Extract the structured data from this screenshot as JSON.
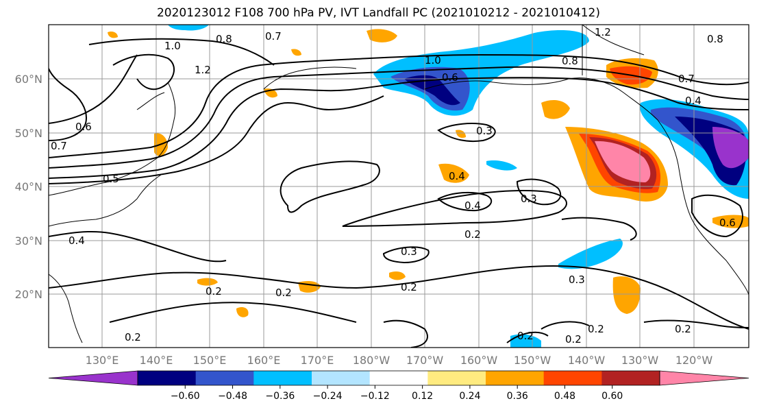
{
  "title": "2020123012 F108 700 hPa PV, IVT Landfall PC (2021010212 - 2021010412)",
  "lat_labels": [
    "60°N",
    "50°N",
    "40°N",
    "30°N",
    "20°N"
  ],
  "lon_labels": [
    "130°E",
    "140°E",
    "150°E",
    "160°E",
    "170°E",
    "180°W",
    "170°W",
    "160°W",
    "150°W",
    "140°W",
    "130°W",
    "120°W"
  ],
  "colorbar": {
    "colors": [
      "#9933cc",
      "#000080",
      "#3355cc",
      "#00bfff",
      "#b3e5ff",
      "#ffffff",
      "#ffeb80",
      "#ffa500",
      "#ff4500",
      "#b22222",
      "#ff85a8"
    ],
    "ticks": [
      "−0.60",
      "−0.48",
      "−0.36",
      "−0.24",
      "−0.12",
      "0.12",
      "0.24",
      "0.36",
      "0.48",
      "0.60"
    ]
  },
  "contour_labels": [
    "0.8",
    "0.7",
    "1.0",
    "1.2",
    "1.0",
    "0.8",
    "0.6",
    "1.2",
    "0.8",
    "0.7",
    "0.4",
    "0.6",
    "0.7",
    "0.5",
    "0.3",
    "0.4",
    "0.3",
    "0.4",
    "0.2",
    "0.3",
    "0.2",
    "0.2",
    "0.2",
    "0.2",
    "0.3",
    "0.2",
    "0.2",
    "0.2",
    "0.4",
    "0.2",
    "0.6"
  ]
}
